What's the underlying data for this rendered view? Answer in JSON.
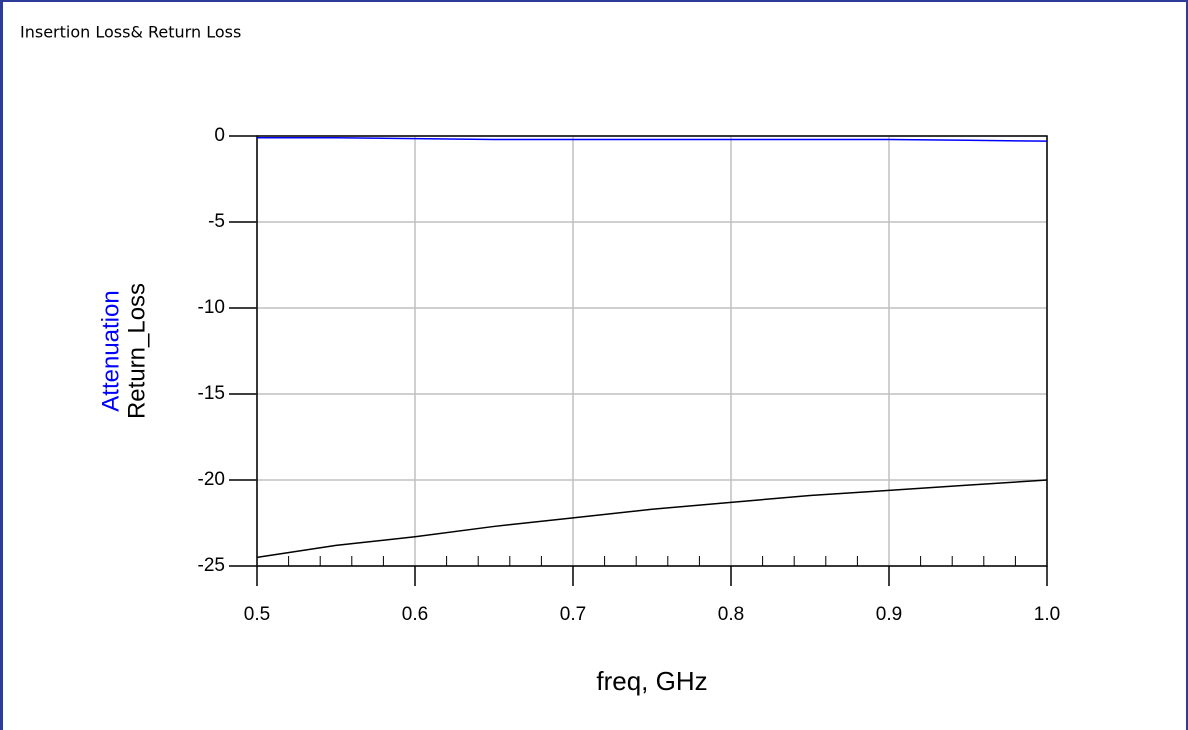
{
  "chart_data": {
    "type": "line",
    "title": "Insertion Loss& Return Loss",
    "xlabel": "freq, GHz",
    "x": [
      0.5,
      0.55,
      0.6,
      0.65,
      0.7,
      0.75,
      0.8,
      0.85,
      0.9,
      0.95,
      1.0
    ],
    "series": [
      {
        "name": "Attenuation",
        "color": "#0000ff",
        "values": [
          -0.1,
          -0.1,
          -0.15,
          -0.2,
          -0.2,
          -0.2,
          -0.2,
          -0.2,
          -0.2,
          -0.25,
          -0.3
        ]
      },
      {
        "name": "Return_Loss",
        "color": "#000000",
        "values": [
          -24.5,
          -23.8,
          -23.3,
          -22.7,
          -22.2,
          -21.7,
          -21.3,
          -20.9,
          -20.6,
          -20.3,
          -20.0
        ]
      }
    ],
    "xlim": [
      0.5,
      1.0
    ],
    "xticks": [
      0.5,
      0.6,
      0.7,
      0.8,
      0.9,
      {
        "value": 1.0,
        "label": "1.0"
      }
    ],
    "ylim": [
      -25,
      0
    ],
    "yticks": [
      0,
      -5,
      -10,
      -15,
      -20,
      -25
    ],
    "grid": true
  }
}
